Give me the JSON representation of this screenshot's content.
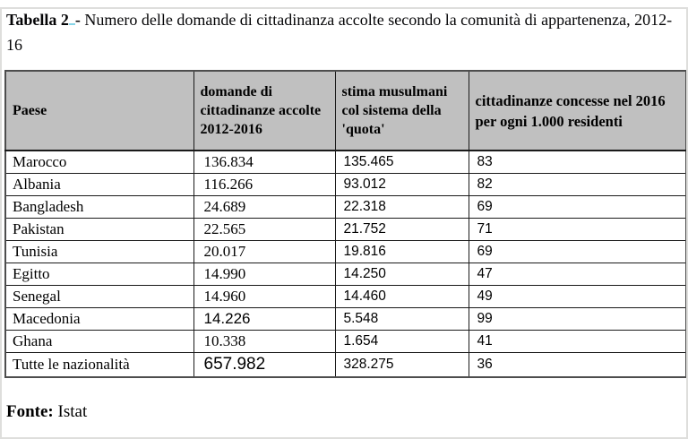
{
  "page": {
    "title_bold": "Tabella 2",
    "title_dash": "- ",
    "title_rest": "Numero delle domande di cittadinanza accolte secondo la comunità di appartenenza, 2012-16",
    "source_label": "Fonte:",
    "source_value": "Istat"
  },
  "colors": {
    "header_bg": "#c0c0c0",
    "table_border": "#1a1a1a",
    "outer_border": "#4d4d4d",
    "spellcheck_underline": "#86d5e8"
  },
  "table": {
    "columns": [
      {
        "key": "paese",
        "label": "Paese"
      },
      {
        "key": "domande",
        "label": "domande di cittadinanze accolte 2012-2016"
      },
      {
        "key": "stima",
        "label": "stima musulmani col sistema della 'quota'"
      },
      {
        "key": "concesse",
        "label": "cittadinanze concesse nel 2016 per ogni 1.000 residenti"
      }
    ],
    "rows": [
      [
        "Marocco",
        "136.834",
        "135.465",
        "83"
      ],
      [
        "Albania",
        "116.266",
        "93.012",
        "82"
      ],
      [
        "Bangladesh",
        "24.689",
        "22.318",
        "69"
      ],
      [
        "Pakistan",
        "22.565",
        "21.752",
        "71"
      ],
      [
        "Tunisia",
        "20.017",
        "19.816",
        "69"
      ],
      [
        "Egitto",
        "14.990",
        "14.250",
        "47"
      ],
      [
        "Senegal",
        "14.960",
        "14.460",
        "49"
      ],
      [
        "Macedonia",
        "14.226",
        "5.548",
        "99"
      ],
      [
        "Ghana",
        "10.338",
        "1.654",
        "41"
      ],
      [
        "Tutte le nazionalità",
        "657.982",
        "328.275",
        "36"
      ]
    ]
  }
}
